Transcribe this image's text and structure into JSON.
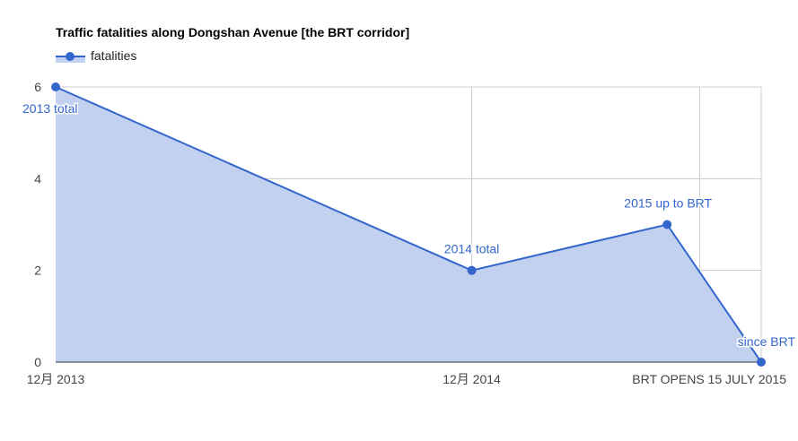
{
  "chart_data": {
    "type": "area",
    "title": "Traffic fatalities along Dongshan Avenue [the BRT corridor]",
    "xlabel": "",
    "ylabel": "",
    "ylim": [
      0,
      6
    ],
    "yticks": [
      "0",
      "2",
      "4",
      "6"
    ],
    "xlim": [
      0,
      19.5
    ],
    "xticks": [
      {
        "label": "12月 2013",
        "value": 0
      },
      {
        "label": "12月 2014",
        "value": 11.5
      },
      {
        "label": "BRT OPENS 15 JULY 2015",
        "value": 19.5
      }
    ],
    "grid": true,
    "legend": "top-left",
    "colors": {
      "line": "#3366cc",
      "fill": "#c2d1f0",
      "grid": "#cccccc",
      "axis": "#333333",
      "annotation": "#3366cc"
    },
    "series": [
      {
        "name": "fatalities",
        "points": [
          {
            "x": 0,
            "y": 6,
            "annotation": "2013 total"
          },
          {
            "x": 11.5,
            "y": 2,
            "annotation": "2014 total"
          },
          {
            "x": 16.9,
            "y": 3,
            "annotation": "2015 up to BRT"
          },
          {
            "x": 19.5,
            "y": 0,
            "annotation": "since BRT"
          }
        ]
      }
    ],
    "vertical_gridlines_x": [
      11.5,
      17.8,
      19.5
    ]
  }
}
